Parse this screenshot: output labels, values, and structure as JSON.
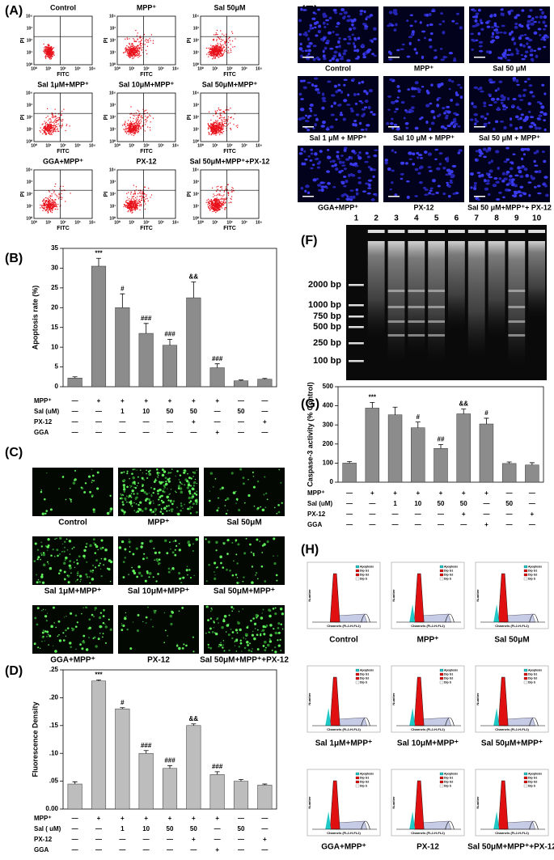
{
  "panel_labels": {
    "A": "(A)",
    "B": "(B)",
    "C": "(C)",
    "D": "(D)",
    "E": "(E)",
    "F": "(F)",
    "G": "(G)",
    "H": "(H)"
  },
  "flow_cytometry": {
    "titles": [
      "Control",
      "MPP⁺",
      "Sal 50μM",
      "Sal 1μM+MPP⁺",
      "Sal 10μM+MPP⁺",
      "Sal 50μM+MPP⁺",
      "GGA+MPP⁺",
      "PX-12",
      "Sal 50μM+MPP⁺+PX-12"
    ],
    "x_axis": "FITC",
    "y_axis": "PI",
    "ticks": [
      "10⁰",
      "10¹",
      "10²",
      "10³",
      "10⁴"
    ]
  },
  "fluorescence_images": {
    "captions": [
      "Control",
      "MPP⁺",
      "Sal 50μM",
      "Sal 1μM+MPP⁺",
      "Sal 10μM+MPP⁺",
      "Sal 50μM+MPP⁺",
      "GGA+MPP⁺",
      "PX-12",
      "Sal 50μM+MPP⁺+PX-12"
    ]
  },
  "nuclear_images": {
    "captions": [
      "Control",
      "MPP⁺",
      "Sal 50 μM",
      "Sal 1 μM + MPP⁺",
      "Sal 10 μM + MPP⁺",
      "Sal 50 μM + MPP⁺",
      "GGA+MPP⁺",
      "PX-12",
      "Sal 50 μM+MPP⁺+ PX-12"
    ]
  },
  "gel": {
    "lanes": [
      "1",
      "2",
      "3",
      "4",
      "5",
      "6",
      "7",
      "8",
      "9",
      "10"
    ],
    "markers": [
      "2000 bp",
      "1000 bp",
      "750 bp",
      "500 bp",
      "250 bp",
      "100 bp"
    ]
  },
  "cell_cycle": {
    "captions": [
      "Control",
      "MPP⁺",
      "Sal 50μM",
      "Sal 1μM+MPP⁺",
      "Sal 10μM+MPP⁺",
      "Sal 50μM+MPP⁺",
      "GGA+MPP⁺",
      "PX-12",
      "Sal 50μM+MPP⁺+PX-12"
    ],
    "x_axis": "Channels (FL2-H-FL2)",
    "y_axis": "Number",
    "legend": [
      "Apoptosis",
      "Dip G1",
      "Dip G2",
      "Dip S"
    ]
  },
  "chart_data": [
    {
      "type": "bar",
      "y_label": "Apoptosis rate (%)",
      "color": "#8c8c8c",
      "values": [
        2.2,
        30.5,
        20,
        13.5,
        10.5,
        22.5,
        4.8,
        1.5,
        1.9
      ],
      "errors": [
        0.3,
        2,
        3.5,
        2.5,
        1.5,
        4,
        1,
        0.2,
        0.2
      ],
      "annotations": [
        null,
        "***",
        "#",
        "###",
        "###",
        "&&",
        "###",
        null,
        null
      ],
      "ylim": [
        0,
        35
      ],
      "yticks": [
        0,
        5,
        10,
        15,
        20,
        25,
        30,
        35
      ],
      "treatments": [
        {
          "label": "MPP⁺",
          "values": [
            "—",
            "+",
            "+",
            "+",
            "+",
            "+",
            "+",
            "—",
            "—"
          ]
        },
        {
          "label": "Sal (uM)",
          "values": [
            "—",
            "—",
            "1",
            "10",
            "50",
            "50",
            "—",
            "50",
            "—"
          ]
        },
        {
          "label": "PX-12",
          "values": [
            "—",
            "—",
            "—",
            "—",
            "—",
            "+",
            "—",
            "—",
            "+"
          ]
        },
        {
          "label": "GGA",
          "values": [
            "—",
            "—",
            "—",
            "—",
            "—",
            "—",
            "+",
            "—",
            "—"
          ]
        }
      ]
    },
    {
      "type": "bar",
      "y_label": "Fluorescence Density",
      "color": "#bdbdbd",
      "values": [
        0.045,
        0.23,
        0.18,
        0.1,
        0.073,
        0.15,
        0.062,
        0.05,
        0.043
      ],
      "errors": [
        0.004,
        0.002,
        0.002,
        0.005,
        0.005,
        0.003,
        0.005,
        0.003,
        0.002
      ],
      "annotations": [
        null,
        "***",
        "#",
        "###",
        "###",
        "&&",
        "###",
        null,
        null
      ],
      "ylim": [
        0,
        0.25
      ],
      "yticks": [
        {
          "value": 0,
          "label": "0.00"
        },
        {
          "value": 0.05,
          "label": ".05"
        },
        {
          "value": 0.1,
          "label": ".10"
        },
        {
          "value": 0.15,
          "label": ".15"
        },
        {
          "value": 0.2,
          "label": ".20"
        },
        {
          "value": 0.25,
          "label": ".25"
        }
      ],
      "treatments": [
        {
          "label": "MPP⁺",
          "values": [
            "—",
            "+",
            "+",
            "+",
            "+",
            "+",
            "+",
            "—",
            "—"
          ]
        },
        {
          "label": "Sal ( uM)",
          "values": [
            "—",
            "—",
            "1",
            "10",
            "50",
            "50",
            "—",
            "50",
            "—"
          ]
        },
        {
          "label": "PX-12",
          "values": [
            "—",
            "—",
            "—",
            "—",
            "—",
            "+",
            "—",
            "—",
            "+"
          ]
        },
        {
          "label": "GGA",
          "values": [
            "—",
            "—",
            "—",
            "—",
            "—",
            "—",
            "+",
            "—",
            "—"
          ]
        }
      ]
    },
    {
      "type": "bar",
      "y_label": "Caspase-3 activity (% Control)",
      "color": "#8c8c8c",
      "values": [
        100,
        388,
        353,
        285,
        177,
        358,
        305,
        98,
        90
      ],
      "errors": [
        8,
        30,
        40,
        30,
        20,
        25,
        30,
        8,
        12
      ],
      "annotations": [
        null,
        "***",
        null,
        "#",
        "##",
        "&&",
        "#",
        null,
        null
      ],
      "ylim": [
        0,
        500
      ],
      "yticks": [
        0,
        100,
        200,
        300,
        400,
        500
      ],
      "treatments": [
        {
          "label": "MPP⁺",
          "values": [
            "—",
            "+",
            "+",
            "+",
            "+",
            "+",
            "+",
            "—",
            "—"
          ]
        },
        {
          "label": "Sal (uM)",
          "values": [
            "—",
            "—",
            "1",
            "10",
            "50",
            "50",
            "—",
            "50",
            "—"
          ]
        },
        {
          "label": "PX-12",
          "values": [
            "—",
            "—",
            "—",
            "—",
            "—",
            "+",
            "—",
            "—",
            "+"
          ]
        },
        {
          "label": "GGA",
          "values": [
            "—",
            "—",
            "—",
            "—",
            "—",
            "—",
            "+",
            "—",
            "—"
          ]
        }
      ]
    }
  ]
}
